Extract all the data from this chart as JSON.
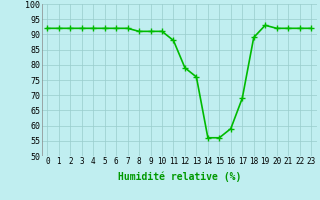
{
  "x": [
    0,
    1,
    2,
    3,
    4,
    5,
    6,
    7,
    8,
    9,
    10,
    11,
    12,
    13,
    14,
    15,
    16,
    17,
    18,
    19,
    20,
    21,
    22,
    23
  ],
  "y": [
    92,
    92,
    92,
    92,
    92,
    92,
    92,
    92,
    91,
    91,
    91,
    88,
    79,
    76,
    56,
    56,
    59,
    69,
    89,
    93,
    92,
    92,
    92,
    92
  ],
  "line_color": "#00bb00",
  "marker": "+",
  "bg_color": "#c0eef0",
  "grid_color": "#99cccc",
  "xlabel": "Humidité relative (%)",
  "ylim": [
    50,
    100
  ],
  "xlim_min": -0.5,
  "xlim_max": 23.5,
  "yticks": [
    50,
    55,
    60,
    65,
    70,
    75,
    80,
    85,
    90,
    95,
    100
  ],
  "xticks": [
    0,
    1,
    2,
    3,
    4,
    5,
    6,
    7,
    8,
    9,
    10,
    11,
    12,
    13,
    14,
    15,
    16,
    17,
    18,
    19,
    20,
    21,
    22,
    23
  ],
  "xlabel_color": "#009900",
  "xlabel_fontsize": 7,
  "ytick_fontsize": 6,
  "xtick_fontsize": 5.5,
  "line_width": 1.2,
  "marker_size": 4,
  "marker_edge_width": 1.0
}
